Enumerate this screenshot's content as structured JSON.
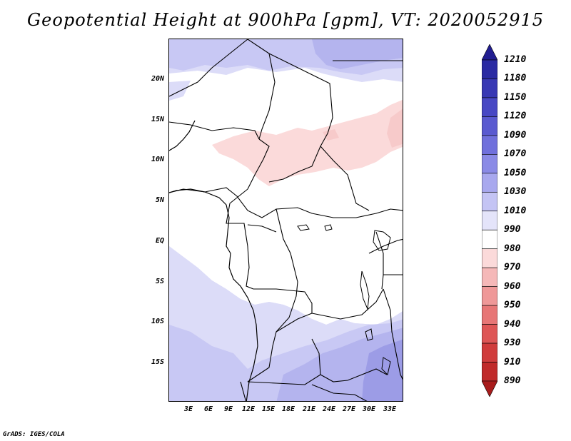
{
  "title": "Geopotential Height at 900hPa [gpm], VT: 2020052915",
  "credit": "GrADS: IGES/COLA",
  "y_axis_labels": [
    "20N",
    "15N",
    "10N",
    "5N",
    "EQ",
    "5S",
    "10S",
    "15S"
  ],
  "x_axis_labels": [
    "3E",
    "6E",
    "9E",
    "12E",
    "15E",
    "18E",
    "21E",
    "24E",
    "27E",
    "30E",
    "33E"
  ],
  "colorbar": {
    "labels": [
      "1210",
      "1180",
      "1150",
      "1120",
      "1090",
      "1070",
      "1050",
      "1030",
      "1010",
      "990",
      "980",
      "970",
      "960",
      "950",
      "940",
      "930",
      "910",
      "890"
    ],
    "colors": [
      "#221e91",
      "#2a2aa3",
      "#3838b4",
      "#4848c4",
      "#5a5ad0",
      "#7070dc",
      "#8a8ae6",
      "#a8a8ee",
      "#c4c4f4",
      "#e4e4fa",
      "#ffffff",
      "#fbdada",
      "#f5b8b8",
      "#ef9898",
      "#e77676",
      "#de5656",
      "#d03c3c",
      "#c02a2a",
      "#a81c1c"
    ]
  },
  "field_colors": {
    "very_light_blue": "#dcdcf8",
    "light_blue": "#c8c8f4",
    "medium_blue": "#b4b4ee",
    "blue": "#9c9ce6",
    "pink": "#fbdada",
    "pink_dark": "#f7caca",
    "land_white": "#ffffff"
  }
}
